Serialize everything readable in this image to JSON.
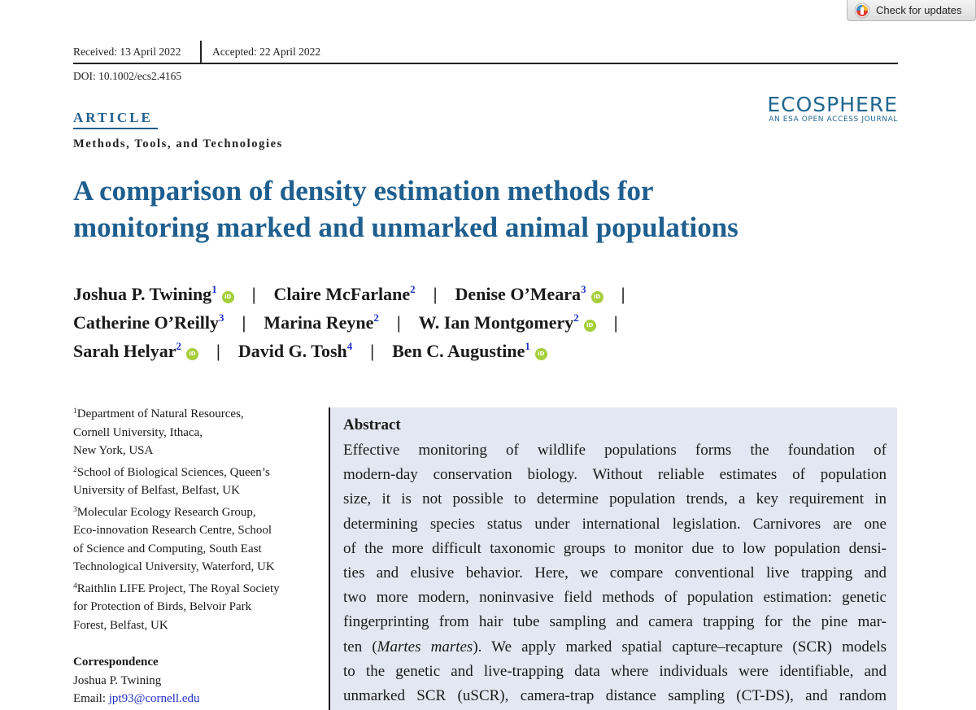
{
  "check_updates": {
    "label": "Check for updates",
    "icon": "crossmark-icon"
  },
  "header": {
    "received": "Received: 13 April 2022",
    "accepted": "Accepted: 22 April 2022",
    "doi": "DOI: 10.1002/ecs2.4165"
  },
  "journal": {
    "name": "ECOSPHERE",
    "subtitle": "AN ESA OPEN ACCESS JOURNAL",
    "color": "#1f6690"
  },
  "article_type": "ARTICLE",
  "section": "Methods, Tools, and Technologies",
  "title": {
    "line1": "A comparison of density estimation methods for",
    "line2": "monitoring marked and unmarked animal populations"
  },
  "authors": [
    {
      "name": "Joshua P. Twining",
      "sup": "1",
      "orcid": true
    },
    {
      "name": "Claire McFarlane",
      "sup": "2",
      "orcid": false
    },
    {
      "name": "Denise O’Meara",
      "sup": "3",
      "orcid": true
    },
    {
      "name": "Catherine O’Reilly",
      "sup": "3",
      "orcid": false
    },
    {
      "name": "Marina Reyne",
      "sup": "2",
      "orcid": false
    },
    {
      "name": "W. Ian Montgomery",
      "sup": "2",
      "orcid": true
    },
    {
      "name": "Sarah Helyar",
      "sup": "2",
      "orcid": true
    },
    {
      "name": "David G. Tosh",
      "sup": "4",
      "orcid": false
    },
    {
      "name": "Ben C. Augustine",
      "sup": "1",
      "orcid": true
    }
  ],
  "separator": "|",
  "orcid_label": "iD",
  "affiliations": [
    {
      "sup": "1",
      "lines": [
        "Department of Natural Resources,",
        "Cornell University, Ithaca,",
        "New York, USA"
      ]
    },
    {
      "sup": "2",
      "lines": [
        "School of Biological Sciences, Queen’s",
        "University of Belfast, Belfast, UK"
      ]
    },
    {
      "sup": "3",
      "lines": [
        "Molecular Ecology Research Group,",
        "Eco-innovation Research Centre, School",
        "of Science and Computing, South East",
        "Technological University, Waterford, UK"
      ]
    },
    {
      "sup": "4",
      "lines": [
        "Raithlin LIFE Project, The Royal Society",
        "for Protection of Birds, Belvoir Park",
        "Forest, Belfast, UK"
      ]
    }
  ],
  "correspondence": {
    "heading": "Correspondence",
    "name": "Joshua P. Twining",
    "email_label": "Email: ",
    "email": "jpt93@cornell.edu"
  },
  "abstract": {
    "heading": "Abstract",
    "lines": [
      "Effective monitoring of wildlife populations forms the foundation of",
      "modern-day conservation biology. Without reliable estimates of population",
      "size, it is not possible to determine population trends, a key requirement in",
      "determining species status under international legislation. Carnivores are one",
      "of the more difficult taxonomic groups to monitor due to low population densi-",
      "ties and elusive behavior. Here, we compare conventional live trapping and",
      "two more modern, noninvasive field methods of population estimation: genetic",
      "fingerprinting from hair tube sampling and camera trapping for the pine mar-",
      "ten (",
      "Martes martes",
      "). We apply marked spatial capture–recapture (SCR) models",
      "to the genetic and live-trapping data where individuals were identifiable, and",
      "unmarked SCR (uSCR), camera-trap distance sampling (CT-DS), and random"
    ]
  }
}
